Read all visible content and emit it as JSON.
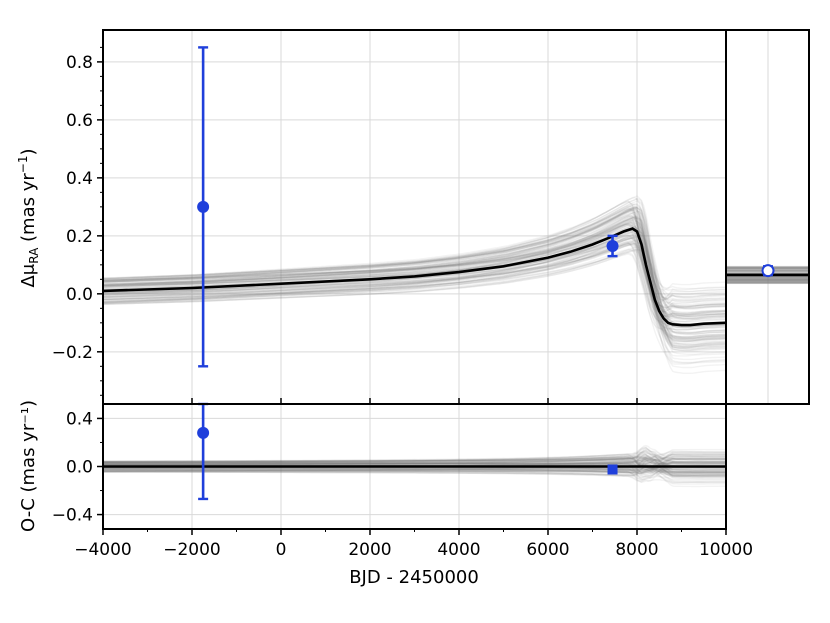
{
  "chart_data": [
    {
      "panel": "top",
      "type": "line",
      "ylabel": {
        "prefix": "Δμ",
        "subscript": "RA",
        "mid": " (mas yr",
        "sup": "−1",
        "end": ")"
      },
      "xlim": [
        -4000,
        10000
      ],
      "ylim": [
        -0.38,
        0.91
      ],
      "y_ticks": [
        -0.2,
        0.0,
        0.2,
        0.4,
        0.6,
        0.8
      ],
      "y_tick_labels": [
        "−0.2",
        "0.0",
        "0.2",
        "0.4",
        "0.6",
        "0.8"
      ],
      "x_ticks": [
        -4000,
        -2000,
        0,
        2000,
        4000,
        6000,
        8000,
        10000
      ],
      "grid": true,
      "best_fit": {
        "color": "#000000",
        "x": [
          -4000,
          -2000,
          0,
          2000,
          3000,
          4000,
          5000,
          6000,
          6500,
          7000,
          7400,
          7700,
          7900,
          8000,
          8100,
          8200,
          8300,
          8400,
          8500,
          8600,
          8700,
          8800,
          9000,
          9200,
          9500,
          10000
        ],
        "y": [
          0.01,
          0.02,
          0.035,
          0.05,
          0.06,
          0.075,
          0.095,
          0.125,
          0.145,
          0.17,
          0.195,
          0.215,
          0.225,
          0.215,
          0.17,
          0.1,
          0.04,
          -0.02,
          -0.06,
          -0.085,
          -0.1,
          -0.105,
          -0.108,
          -0.108,
          -0.103,
          -0.1
        ]
      },
      "posterior_draws": {
        "color": "#808080",
        "count": 120
      },
      "points": [
        {
          "x": -1750,
          "y": 0.3,
          "yerr": 0.55,
          "color": "#1f3fdb"
        },
        {
          "x": 7450,
          "y": 0.165,
          "yerr": 0.035,
          "color": "#1f3fdb"
        }
      ]
    },
    {
      "panel": "top-right-inset",
      "type": "line",
      "ylim": [
        -0.38,
        0.91
      ],
      "best_fit_value": 0.065,
      "points": [
        {
          "y": 0.08,
          "yerr": 0.015,
          "color": "#1f3fdb",
          "marker": "open-circle"
        }
      ]
    },
    {
      "panel": "bottom",
      "type": "scatter",
      "xlabel": "BJD - 2450000",
      "ylabel": "O-C (mas yr⁻¹)",
      "xlim": [
        -4000,
        10000
      ],
      "ylim": [
        -0.52,
        0.52
      ],
      "y_ticks": [
        -0.4,
        0.0,
        0.4
      ],
      "y_tick_labels": [
        "−0.4",
        "0.0",
        "0.4"
      ],
      "x_ticks": [
        -4000,
        -2000,
        0,
        2000,
        4000,
        6000,
        8000,
        10000
      ],
      "x_tick_labels": [
        "−4000",
        "−2000",
        "0",
        "2000",
        "4000",
        "6000",
        "8000",
        "10000"
      ],
      "grid": true,
      "zero_line": 0.0,
      "points": [
        {
          "x": -1750,
          "y": 0.28,
          "yerr": 0.55,
          "color": "#1f3fdb",
          "marker": "circle"
        },
        {
          "x": 7450,
          "y": -0.025,
          "yerr": 0.02,
          "color": "#1f3fdb",
          "marker": "square"
        }
      ]
    }
  ]
}
